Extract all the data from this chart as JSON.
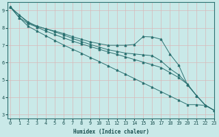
{
  "xlabel": "Humidex (Indice chaleur)",
  "xlim": [
    -0.3,
    23
  ],
  "ylim": [
    2.8,
    9.5
  ],
  "yticks": [
    3,
    4,
    5,
    6,
    7,
    8,
    9
  ],
  "xticks": [
    0,
    1,
    2,
    3,
    4,
    5,
    6,
    7,
    8,
    9,
    10,
    11,
    12,
    13,
    14,
    15,
    16,
    17,
    18,
    19,
    20,
    21,
    22,
    23
  ],
  "bg_color": "#c9e9e8",
  "grid_color": "#e0f0f0",
  "line_color": "#2a7070",
  "series": [
    [
      9.2,
      8.75,
      8.3,
      8.1,
      7.95,
      7.82,
      7.68,
      7.5,
      7.35,
      7.2,
      7.1,
      7.0,
      7.0,
      7.0,
      7.05,
      7.5,
      7.48,
      7.35,
      6.5,
      5.85,
      4.7,
      4.1,
      3.55,
      3.25
    ],
    [
      9.2,
      8.75,
      8.35,
      8.1,
      7.95,
      7.78,
      7.6,
      7.4,
      7.22,
      7.05,
      6.9,
      6.75,
      6.65,
      6.55,
      6.5,
      6.45,
      6.4,
      6.1,
      5.65,
      5.3,
      4.75,
      4.1,
      3.55,
      3.25
    ],
    [
      9.2,
      8.6,
      8.25,
      8.05,
      7.82,
      7.62,
      7.43,
      7.25,
      7.08,
      6.93,
      6.78,
      6.62,
      6.48,
      6.33,
      6.18,
      6.03,
      5.88,
      5.72,
      5.43,
      5.14,
      4.75,
      4.1,
      3.55,
      3.25
    ],
    [
      9.2,
      8.6,
      8.1,
      7.82,
      7.55,
      7.28,
      7.02,
      6.78,
      6.55,
      6.3,
      6.07,
      5.82,
      5.57,
      5.33,
      5.08,
      4.83,
      4.58,
      4.33,
      4.08,
      3.83,
      3.58,
      3.58,
      3.53,
      3.25
    ]
  ]
}
